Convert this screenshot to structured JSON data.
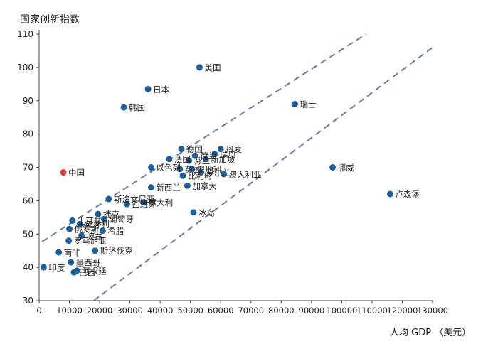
{
  "chart_data": {
    "type": "scatter",
    "ylabel": "国家创新指数",
    "xlabel": "人均 GDP （美元）",
    "xlim": [
      0,
      130000
    ],
    "ylim": [
      30,
      110
    ],
    "xticks": [
      0,
      10000,
      20000,
      30000,
      40000,
      50000,
      60000,
      70000,
      80000,
      90000,
      100000,
      110000,
      120000,
      130000
    ],
    "yticks": [
      30,
      40,
      50,
      60,
      70,
      80,
      90,
      100,
      110
    ],
    "grid": false,
    "colors": {
      "point": "#1f5f98",
      "highlight": "#e03a3a",
      "band": "#6b7aa6",
      "axis": "#444444"
    },
    "bands": [
      {
        "from": [
          -2000,
          46
        ],
        "to": [
          108000,
          110
        ]
      },
      {
        "from": [
          18000,
          30
        ],
        "to": [
          130000,
          106
        ]
      }
    ],
    "points": [
      {
        "label": "美国",
        "x": 53000,
        "y": 100
      },
      {
        "label": "日本",
        "x": 36000,
        "y": 93.5
      },
      {
        "label": "瑞士",
        "x": 84500,
        "y": 89
      },
      {
        "label": "韩国",
        "x": 28000,
        "y": 88
      },
      {
        "label": "丹麦",
        "x": 60000,
        "y": 75.5
      },
      {
        "label": "德国",
        "x": 47000,
        "y": 75.5
      },
      {
        "label": "荷兰",
        "x": 51500,
        "y": 73.5
      },
      {
        "label": "瑞典",
        "x": 58000,
        "y": 74
      },
      {
        "label": "法国",
        "x": 43000,
        "y": 72.5
      },
      {
        "label": "芬兰",
        "x": 49500,
        "y": 72
      },
      {
        "label": "新加坡",
        "x": 55000,
        "y": 72.5
      },
      {
        "label": "奥地利",
        "x": 50500,
        "y": 69.5
      },
      {
        "label": "以色列",
        "x": 37000,
        "y": 70
      },
      {
        "label": "英国",
        "x": 46500,
        "y": 69.5
      },
      {
        "label": "比利时",
        "x": 47500,
        "y": 67.5
      },
      {
        "label": "爱尔兰",
        "x": 53500,
        "y": 68.5
      },
      {
        "label": "澳大利亚",
        "x": 61000,
        "y": 68
      },
      {
        "label": "挪威",
        "x": 97000,
        "y": 70
      },
      {
        "label": "中国",
        "x": 8000,
        "y": 68.5
      },
      {
        "label": "新西兰",
        "x": 37000,
        "y": 64
      },
      {
        "label": "加拿大",
        "x": 49000,
        "y": 64.5
      },
      {
        "label": "卢森堡",
        "x": 116000,
        "y": 62
      },
      {
        "label": "斯洛文尼亚",
        "x": 23000,
        "y": 60.5
      },
      {
        "label": "意大利",
        "x": 34500,
        "y": 59.5
      },
      {
        "label": "西班牙",
        "x": 29000,
        "y": 59
      },
      {
        "label": "冰岛",
        "x": 51000,
        "y": 56.5
      },
      {
        "label": "捷克",
        "x": 19500,
        "y": 56
      },
      {
        "label": "葡萄牙",
        "x": 21500,
        "y": 54.5
      },
      {
        "label": "土耳其",
        "x": 11000,
        "y": 54
      },
      {
        "label": "匈牙利",
        "x": 13500,
        "y": 53
      },
      {
        "label": "希腊",
        "x": 21000,
        "y": 51
      },
      {
        "label": "俄罗斯",
        "x": 10000,
        "y": 51.5
      },
      {
        "label": "波兰",
        "x": 14000,
        "y": 49.5
      },
      {
        "label": "罗马尼亚",
        "x": 9800,
        "y": 48
      },
      {
        "label": "斯洛伐克",
        "x": 18500,
        "y": 45
      },
      {
        "label": "南非",
        "x": 6500,
        "y": 44.5
      },
      {
        "label": "墨西哥",
        "x": 10500,
        "y": 41.5
      },
      {
        "label": "印度",
        "x": 1500,
        "y": 40
      },
      {
        "label": "阿根廷",
        "x": 12500,
        "y": 39
      },
      {
        "label": "巴西",
        "x": 11500,
        "y": 38.5
      }
    ],
    "highlight": [
      "中国"
    ]
  }
}
